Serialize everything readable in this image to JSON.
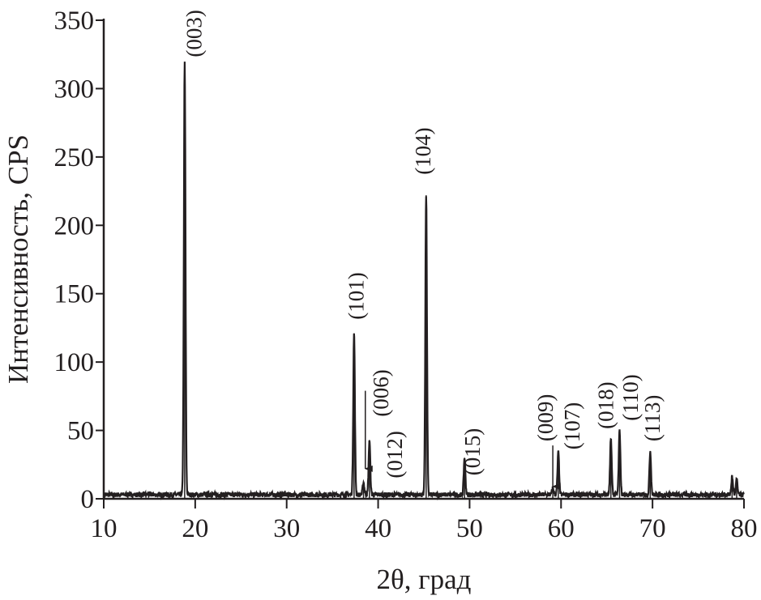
{
  "chart_data": {
    "type": "line",
    "title": "",
    "xlabel": "2θ, град",
    "ylabel": "Интенсивность, CPS",
    "xlim": [
      10,
      80
    ],
    "ylim": [
      0,
      350
    ],
    "xticks": [
      10,
      20,
      30,
      40,
      50,
      60,
      70,
      80
    ],
    "yticks": [
      0,
      50,
      100,
      150,
      200,
      250,
      300,
      350
    ],
    "grid": false,
    "line_color": "#231f20",
    "baseline_cps": 3,
    "peaks": [
      {
        "x": 18.85,
        "y": 319
      },
      {
        "x": 37.37,
        "y": 121
      },
      {
        "x": 38.4,
        "y": 12
      },
      {
        "x": 39.05,
        "y": 43
      },
      {
        "x": 45.25,
        "y": 222
      },
      {
        "x": 49.45,
        "y": 30
      },
      {
        "x": 59.1,
        "y": 8
      },
      {
        "x": 59.7,
        "y": 34
      },
      {
        "x": 65.45,
        "y": 44
      },
      {
        "x": 66.4,
        "y": 50
      },
      {
        "x": 69.75,
        "y": 35
      },
      {
        "x": 78.7,
        "y": 16
      },
      {
        "x": 79.2,
        "y": 14
      }
    ],
    "annotations": [
      {
        "text": "(003)",
        "x": 19.9,
        "y": 323
      },
      {
        "text": "(101)",
        "x": 37.6,
        "y": 131
      },
      {
        "text": "(006)",
        "x": 40.3,
        "y": 60
      },
      {
        "text": "(012)",
        "x": 41.8,
        "y": 15,
        "arrow": {
          "x": 38.6,
          "y_from": 79,
          "y_to": 22
        }
      },
      {
        "text": "(104)",
        "x": 44.9,
        "y": 237
      },
      {
        "text": "(015)",
        "x": 50.3,
        "y": 17
      },
      {
        "text": "(009)",
        "x": 58.3,
        "y": 42,
        "arrow": {
          "x": 59.1,
          "y_from": 39,
          "y_to": 9
        }
      },
      {
        "text": "(107)",
        "x": 61.2,
        "y": 36
      },
      {
        "text": "(018)",
        "x": 64.9,
        "y": 51
      },
      {
        "text": "(110)",
        "x": 67.6,
        "y": 57
      },
      {
        "text": "(113)",
        "x": 70.0,
        "y": 42
      }
    ]
  }
}
